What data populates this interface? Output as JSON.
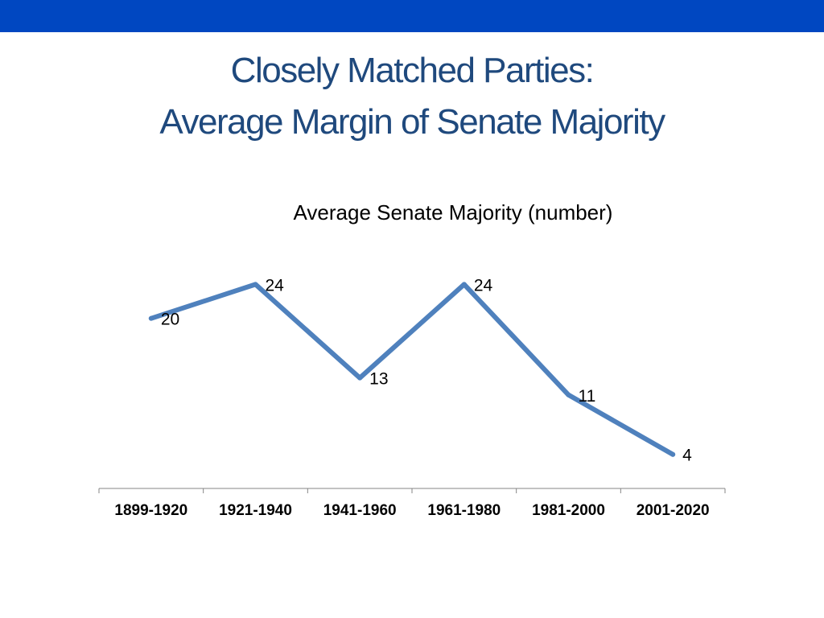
{
  "slide": {
    "title_line1": "Closely Matched Parties:",
    "title_line2": "Average Margin of Senate Majority",
    "accent_color": "#0047c1",
    "title_color": "#1f497d"
  },
  "chart_data": {
    "type": "line",
    "title": "Average Senate Majority (number)",
    "categories": [
      "1899-1920",
      "1921-1940",
      "1941-1960",
      "1961-1980",
      "1981-2000",
      "2001-2020"
    ],
    "series": [
      {
        "values": [
          20,
          24,
          13,
          24,
          11,
          4
        ],
        "color": "#4f81bd"
      }
    ],
    "data_labels": true,
    "ylim": [
      0,
      30
    ],
    "y_axis_visible": false,
    "grid": false,
    "legend": "none"
  }
}
